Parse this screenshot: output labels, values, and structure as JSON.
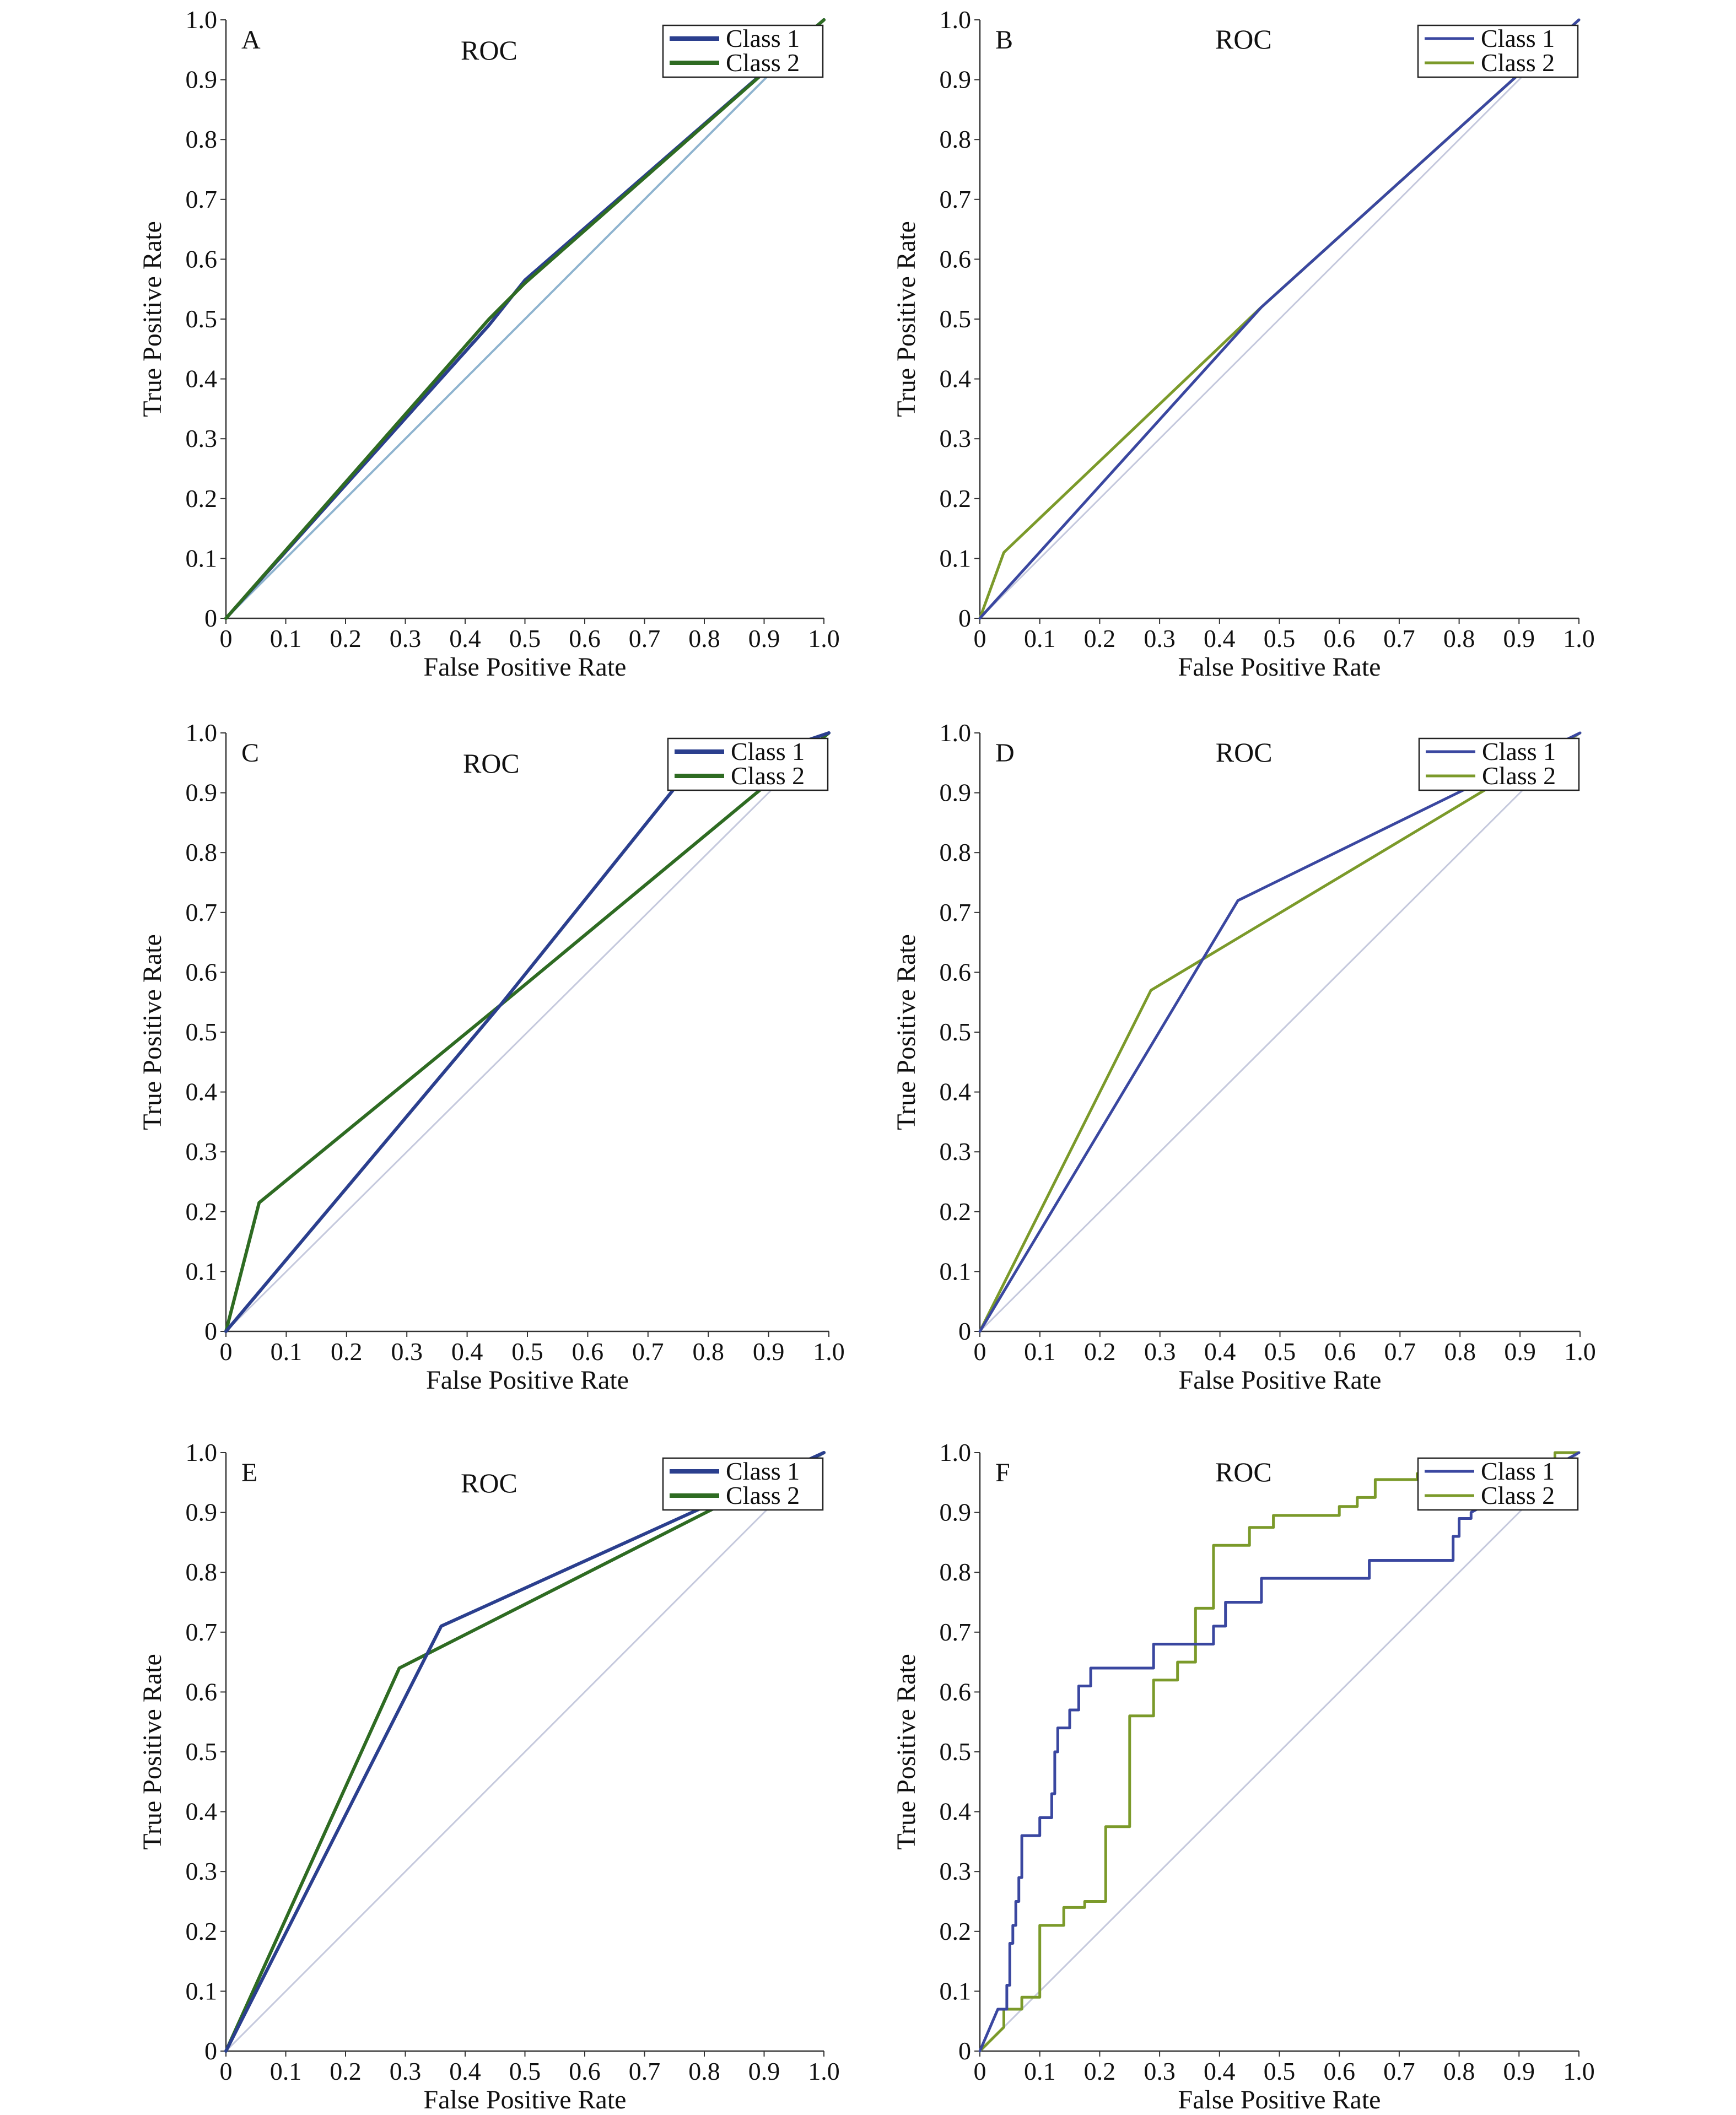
{
  "colors": {
    "class1": "#3a47a0",
    "class1_dark": "#2b3f8e",
    "class2": "#7b9a2a",
    "class2_dark": "#2e6b22",
    "chance": "#c5c9dd",
    "chance_a": "#8fb4cf",
    "axis": "#333333"
  },
  "chart_data": [
    {
      "panel": "A",
      "type": "line",
      "title": "ROC",
      "xlabel": "False Positive Rate",
      "ylabel": "True Positive Rate",
      "xlim": [
        0,
        1
      ],
      "ylim": [
        0,
        1
      ],
      "xticks": [
        "0",
        "0.1",
        "0.2",
        "0.3",
        "0.4",
        "0.5",
        "0.6",
        "0.7",
        "0.8",
        "0.9",
        "1.0"
      ],
      "yticks": [
        "0",
        "0.1",
        "0.2",
        "0.3",
        "0.4",
        "0.5",
        "0.6",
        "0.7",
        "0.8",
        "0.9",
        "1.0"
      ],
      "legend": [
        "Class 1",
        "Class 2"
      ],
      "legend_variant": "dark",
      "series": [
        {
          "name": "Class 1",
          "x": [
            0,
            0.44,
            0.5,
            1.0
          ],
          "y": [
            0,
            0.49,
            0.565,
            1.0
          ]
        },
        {
          "name": "Class 2",
          "x": [
            0,
            0.44,
            0.5,
            1.0
          ],
          "y": [
            0,
            0.5,
            0.56,
            1.0
          ]
        }
      ],
      "chance": {
        "x": [
          0,
          1
        ],
        "y": [
          0,
          1
        ]
      }
    },
    {
      "panel": "B",
      "type": "line",
      "title": "ROC",
      "xlabel": "False Positive Rate",
      "ylabel": "True Positive Rate",
      "xlim": [
        0,
        1
      ],
      "ylim": [
        0,
        1
      ],
      "xticks": [
        "0",
        "0.1",
        "0.2",
        "0.3",
        "0.4",
        "0.5",
        "0.6",
        "0.7",
        "0.8",
        "0.9",
        "1.0"
      ],
      "yticks": [
        "0",
        "0.1",
        "0.2",
        "0.3",
        "0.4",
        "0.5",
        "0.6",
        "0.7",
        "0.8",
        "0.9",
        "1.0"
      ],
      "legend": [
        "Class 1",
        "Class 2"
      ],
      "legend_variant": "light",
      "series": [
        {
          "name": "Class 1",
          "x": [
            0,
            0.47,
            1.0
          ],
          "y": [
            0,
            0.52,
            1.0
          ]
        },
        {
          "name": "Class 2",
          "x": [
            0,
            0.04,
            0.47,
            1.0
          ],
          "y": [
            0,
            0.11,
            0.52,
            1.0
          ]
        }
      ],
      "chance": {
        "x": [
          0,
          1
        ],
        "y": [
          0,
          1
        ]
      }
    },
    {
      "panel": "C",
      "type": "line",
      "title": "ROC",
      "xlabel": "False Positive Rate",
      "ylabel": "True Positive Rate",
      "xlim": [
        0,
        1
      ],
      "ylim": [
        0,
        1
      ],
      "xticks": [
        "0",
        "0.1",
        "0.2",
        "0.3",
        "0.4",
        "0.5",
        "0.6",
        "0.7",
        "0.8",
        "0.9",
        "1.0"
      ],
      "yticks": [
        "0",
        "0.1",
        "0.2",
        "0.3",
        "0.4",
        "0.5",
        "0.6",
        "0.7",
        "0.8",
        "0.9",
        "1.0"
      ],
      "legend": [
        "Class 1",
        "Class 2"
      ],
      "legend_variant": "dark",
      "series": [
        {
          "name": "Class 1",
          "x": [
            0,
            0.455,
            0.75,
            1.0
          ],
          "y": [
            0,
            0.545,
            0.915,
            1.0
          ]
        },
        {
          "name": "Class 2",
          "x": [
            0,
            0.055,
            0.455,
            1.0
          ],
          "y": [
            0,
            0.215,
            0.545,
            1.0
          ]
        }
      ],
      "chance": {
        "x": [
          0,
          1
        ],
        "y": [
          0,
          1
        ]
      }
    },
    {
      "panel": "D",
      "type": "line",
      "title": "ROC",
      "xlabel": "False Positive Rate",
      "ylabel": "True Positive Rate",
      "xlim": [
        0,
        1
      ],
      "ylim": [
        0,
        1
      ],
      "xticks": [
        "0",
        "0.1",
        "0.2",
        "0.3",
        "0.4",
        "0.5",
        "0.6",
        "0.7",
        "0.8",
        "0.9",
        "1.0"
      ],
      "yticks": [
        "0",
        "0.1",
        "0.2",
        "0.3",
        "0.4",
        "0.5",
        "0.6",
        "0.7",
        "0.8",
        "0.9",
        "1.0"
      ],
      "legend": [
        "Class 1",
        "Class 2"
      ],
      "legend_variant": "light",
      "series": [
        {
          "name": "Class 1",
          "x": [
            0,
            0.43,
            1.0
          ],
          "y": [
            0,
            0.72,
            1.0
          ]
        },
        {
          "name": "Class 2",
          "x": [
            0,
            0.285,
            1.0
          ],
          "y": [
            0,
            0.57,
            1.0
          ]
        }
      ],
      "chance": {
        "x": [
          0,
          1
        ],
        "y": [
          0,
          1
        ]
      }
    },
    {
      "panel": "E",
      "type": "line",
      "title": "ROC",
      "xlabel": "False Positive Rate",
      "ylabel": "True Positive Rate",
      "xlim": [
        0,
        1
      ],
      "ylim": [
        0,
        1
      ],
      "xticks": [
        "0",
        "0.1",
        "0.2",
        "0.3",
        "0.4",
        "0.5",
        "0.6",
        "0.7",
        "0.8",
        "0.9",
        "1.0"
      ],
      "yticks": [
        "0",
        "0.1",
        "0.2",
        "0.3",
        "0.4",
        "0.5",
        "0.6",
        "0.7",
        "0.8",
        "0.9",
        "1.0"
      ],
      "legend": [
        "Class 1",
        "Class 2"
      ],
      "legend_variant": "dark",
      "series": [
        {
          "name": "Class 1",
          "x": [
            0,
            0.36,
            1.0
          ],
          "y": [
            0,
            0.71,
            1.0
          ]
        },
        {
          "name": "Class 2",
          "x": [
            0,
            0.29,
            1.0
          ],
          "y": [
            0,
            0.64,
            1.0
          ]
        }
      ],
      "chance": {
        "x": [
          0,
          1
        ],
        "y": [
          0,
          1
        ]
      }
    },
    {
      "panel": "F",
      "type": "line",
      "title": "ROC",
      "xlabel": "False Positive Rate",
      "ylabel": "True Positive Rate",
      "xlim": [
        0,
        1
      ],
      "ylim": [
        0,
        1
      ],
      "xticks": [
        "0",
        "0.1",
        "0.2",
        "0.3",
        "0.4",
        "0.5",
        "0.6",
        "0.7",
        "0.8",
        "0.9",
        "1.0"
      ],
      "yticks": [
        "0",
        "0.1",
        "0.2",
        "0.3",
        "0.4",
        "0.5",
        "0.6",
        "0.7",
        "0.8",
        "0.9",
        "1.0"
      ],
      "legend": [
        "Class 1",
        "Class 2"
      ],
      "legend_variant": "light",
      "series": [
        {
          "name": "Class 1",
          "x": [
            0,
            0.03,
            0.03,
            0.045,
            0.045,
            0.05,
            0.05,
            0.055,
            0.055,
            0.06,
            0.06,
            0.065,
            0.065,
            0.07,
            0.07,
            0.075,
            0.075,
            0.1,
            0.1,
            0.12,
            0.12,
            0.125,
            0.125,
            0.13,
            0.13,
            0.15,
            0.15,
            0.165,
            0.165,
            0.185,
            0.185,
            0.29,
            0.29,
            0.37,
            0.37,
            0.39,
            0.39,
            0.41,
            0.41,
            0.47,
            0.47,
            0.65,
            0.65,
            0.79,
            0.79,
            0.8,
            0.8,
            0.82,
            0.82,
            1.0
          ],
          "y": [
            0,
            0.07,
            0.07,
            0.07,
            0.11,
            0.11,
            0.18,
            0.18,
            0.21,
            0.21,
            0.25,
            0.25,
            0.29,
            0.29,
            0.36,
            0.36,
            0.36,
            0.36,
            0.39,
            0.39,
            0.43,
            0.43,
            0.5,
            0.5,
            0.54,
            0.54,
            0.57,
            0.57,
            0.61,
            0.61,
            0.64,
            0.64,
            0.68,
            0.68,
            0.68,
            0.68,
            0.71,
            0.71,
            0.75,
            0.75,
            0.79,
            0.79,
            0.82,
            0.82,
            0.86,
            0.86,
            0.89,
            0.89,
            0.9,
            1.0
          ]
        },
        {
          "name": "Class 2",
          "x": [
            0,
            0.04,
            0.04,
            0.07,
            0.07,
            0.1,
            0.1,
            0.14,
            0.14,
            0.175,
            0.175,
            0.21,
            0.21,
            0.25,
            0.25,
            0.29,
            0.29,
            0.33,
            0.33,
            0.36,
            0.36,
            0.39,
            0.39,
            0.45,
            0.45,
            0.49,
            0.49,
            0.6,
            0.6,
            0.63,
            0.63,
            0.66,
            0.66,
            0.73,
            0.73,
            0.96,
            0.96,
            1.0
          ],
          "y": [
            0,
            0.04,
            0.07,
            0.07,
            0.09,
            0.09,
            0.21,
            0.21,
            0.24,
            0.24,
            0.25,
            0.25,
            0.375,
            0.375,
            0.56,
            0.56,
            0.62,
            0.62,
            0.65,
            0.65,
            0.74,
            0.74,
            0.845,
            0.845,
            0.875,
            0.875,
            0.895,
            0.895,
            0.91,
            0.91,
            0.925,
            0.925,
            0.955,
            0.955,
            0.965,
            0.965,
            1.0,
            1.0
          ]
        }
      ],
      "chance": {
        "x": [
          0,
          1
        ],
        "y": [
          0,
          1
        ]
      }
    }
  ]
}
